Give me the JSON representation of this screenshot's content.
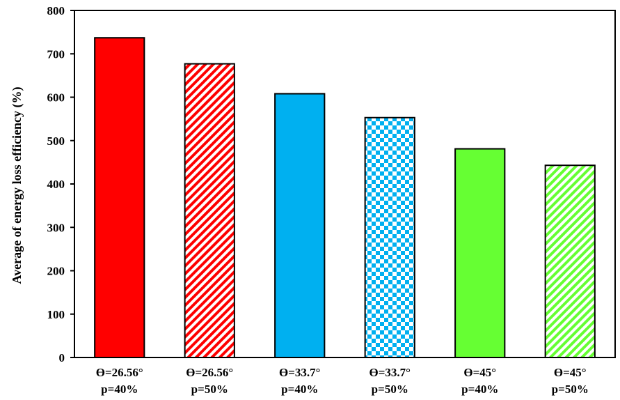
{
  "chart_data": {
    "type": "bar",
    "title": "",
    "xlabel": "",
    "ylabel": "Average of energy loss efficiency (%)",
    "ylim": [
      0,
      800
    ],
    "yticks": [
      0,
      100,
      200,
      300,
      400,
      500,
      600,
      700,
      800
    ],
    "grid": false,
    "legend": "none",
    "categories": [
      [
        "Ɵ=26.56°",
        "p=40%"
      ],
      [
        "Ɵ=26.56°",
        "p=50%"
      ],
      [
        "Ɵ=33.7°",
        "p=40%"
      ],
      [
        "Ɵ=33.7°",
        "p=50%"
      ],
      [
        "Ɵ=45°",
        "p=40%"
      ],
      [
        "Ɵ=45°",
        "p=50%"
      ]
    ],
    "values": [
      737,
      677,
      608,
      553,
      481,
      443
    ],
    "bar_styles": [
      {
        "color": "#ff0000",
        "fill": "solid"
      },
      {
        "color": "#ff0000",
        "fill": "diagonal-stripes"
      },
      {
        "color": "#00b0f0",
        "fill": "solid"
      },
      {
        "color": "#00b0f0",
        "fill": "checkerboard"
      },
      {
        "color": "#66ff33",
        "fill": "solid"
      },
      {
        "color": "#66ff33",
        "fill": "diagonal-stripes"
      }
    ]
  }
}
